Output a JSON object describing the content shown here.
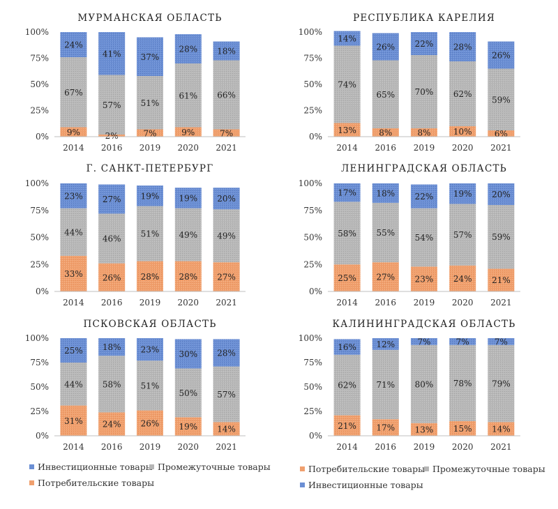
{
  "colors": {
    "investment": "#6b8fd4",
    "intermediate": "#b6b6b6",
    "consumer": "#f0a06e"
  },
  "chart_data": [
    {
      "type": "bar",
      "stacked": true,
      "title": "МУРМАНСКАЯ ОБЛАСТЬ",
      "categories": [
        "2014",
        "2016",
        "2019",
        "2020",
        "2021"
      ],
      "yticks": [
        "0%",
        "25%",
        "50%",
        "75%",
        "100%"
      ],
      "ylim": [
        0,
        100
      ],
      "series": [
        {
          "name": "Потребительские товары",
          "key": "consumer",
          "values": [
            9,
            2,
            7,
            9,
            7
          ]
        },
        {
          "name": "Промежуточные товары",
          "key": "intermediate",
          "values": [
            67,
            57,
            51,
            61,
            66
          ]
        },
        {
          "name": "Инвестиционные товары",
          "key": "investment",
          "values": [
            24,
            41,
            37,
            28,
            18
          ]
        }
      ]
    },
    {
      "type": "bar",
      "stacked": true,
      "title": "РЕСПУБЛИКА КАРЕЛИЯ",
      "categories": [
        "2014",
        "2016",
        "2019",
        "2020",
        "2021"
      ],
      "yticks": [
        "0%",
        "25%",
        "50%",
        "75%",
        "100%"
      ],
      "ylim": [
        0,
        100
      ],
      "series": [
        {
          "name": "Потребительские товары",
          "key": "consumer",
          "values": [
            13,
            8,
            8,
            10,
            6
          ]
        },
        {
          "name": "Промежуточные товары",
          "key": "intermediate",
          "values": [
            74,
            65,
            70,
            62,
            59
          ]
        },
        {
          "name": "Инвестиционные товары",
          "key": "investment",
          "values": [
            14,
            26,
            22,
            28,
            26
          ]
        }
      ]
    },
    {
      "type": "bar",
      "stacked": true,
      "title": "Г. САНКТ-ПЕТЕРБУРГ",
      "categories": [
        "2014",
        "2016",
        "2019",
        "2020",
        "2021"
      ],
      "yticks": [
        "0%",
        "25%",
        "50%",
        "75%",
        "100%"
      ],
      "ylim": [
        0,
        100
      ],
      "series": [
        {
          "name": "Потребительские товары",
          "key": "consumer",
          "values": [
            33,
            26,
            28,
            28,
            27
          ]
        },
        {
          "name": "Промежуточные товары",
          "key": "intermediate",
          "values": [
            44,
            46,
            51,
            49,
            49
          ]
        },
        {
          "name": "Инвестиционные товары",
          "key": "investment",
          "values": [
            23,
            27,
            19,
            19,
            20
          ]
        }
      ]
    },
    {
      "type": "bar",
      "stacked": true,
      "title": "ЛЕНИНГРАДСКАЯ ОБЛАСТЬ",
      "categories": [
        "2014",
        "2016",
        "2019",
        "2020",
        "2021"
      ],
      "yticks": [
        "0%",
        "25%",
        "50%",
        "75%",
        "100%"
      ],
      "ylim": [
        0,
        100
      ],
      "series": [
        {
          "name": "Потребительские товары",
          "key": "consumer",
          "values": [
            25,
            27,
            23,
            24,
            21
          ]
        },
        {
          "name": "Промежуточные товары",
          "key": "intermediate",
          "values": [
            58,
            55,
            54,
            57,
            59
          ]
        },
        {
          "name": "Инвестиционные товары",
          "key": "investment",
          "values": [
            17,
            18,
            22,
            19,
            20
          ]
        }
      ]
    },
    {
      "type": "bar",
      "stacked": true,
      "title": "ПСКОВСКАЯ ОБЛАСТЬ",
      "categories": [
        "2014",
        "2016",
        "2019",
        "2020",
        "2021"
      ],
      "yticks": [
        "0%",
        "25%",
        "50%",
        "75%",
        "100%"
      ],
      "ylim": [
        0,
        100
      ],
      "series": [
        {
          "name": "Потребительские товары",
          "key": "consumer",
          "values": [
            31,
            24,
            26,
            19,
            14
          ]
        },
        {
          "name": "Промежуточные товары",
          "key": "intermediate",
          "values": [
            44,
            58,
            51,
            50,
            57
          ]
        },
        {
          "name": "Инвестиционные товары",
          "key": "investment",
          "values": [
            25,
            18,
            23,
            30,
            28
          ]
        }
      ]
    },
    {
      "type": "bar",
      "stacked": true,
      "title": "КАЛИНИНГРАДСКАЯ ОБЛАСТЬ",
      "categories": [
        "2014",
        "2016",
        "2019",
        "2020",
        "2021"
      ],
      "yticks": [
        "0%",
        "25%",
        "50%",
        "75%",
        "100%"
      ],
      "ylim": [
        0,
        100
      ],
      "series": [
        {
          "name": "Потребительские товары",
          "key": "consumer",
          "values": [
            21,
            17,
            13,
            15,
            14
          ]
        },
        {
          "name": "Промежуточные товары",
          "key": "intermediate",
          "values": [
            62,
            71,
            80,
            78,
            79
          ]
        },
        {
          "name": "Инвестиционные товары",
          "key": "investment",
          "values": [
            16,
            12,
            7,
            7,
            7
          ]
        }
      ]
    }
  ],
  "legend_left": [
    {
      "key": "investment",
      "label": "Инвестиционные товары"
    },
    {
      "key": "intermediate",
      "label": "Промежуточные товары"
    },
    {
      "key": "consumer",
      "label": "Потребительские товары"
    }
  ],
  "legend_right": [
    {
      "key": "consumer",
      "label": "Потребительские товары"
    },
    {
      "key": "intermediate",
      "label": "Промежуточные товары"
    },
    {
      "key": "investment",
      "label": "Инвестиционные товары"
    }
  ]
}
